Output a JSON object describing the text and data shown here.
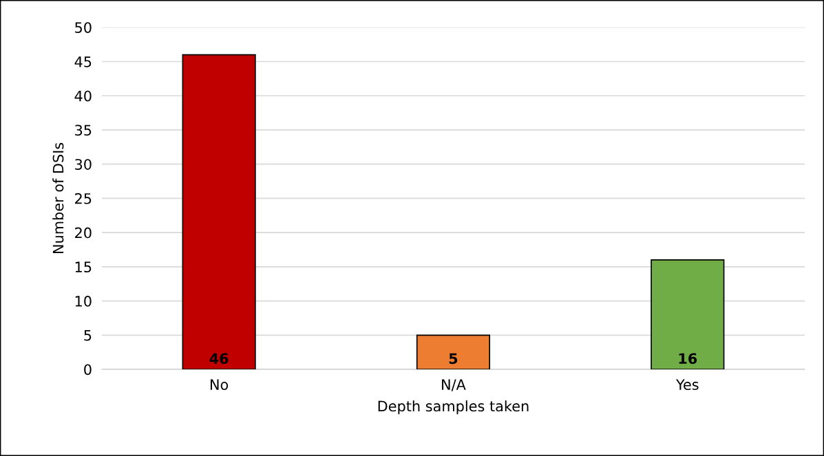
{
  "chart_data": {
    "type": "bar",
    "xlabel": "Depth samples taken",
    "ylabel": "Number of DSIs",
    "categories": [
      "No",
      "N/A",
      "Yes"
    ],
    "values": [
      46,
      5,
      16
    ],
    "colors": [
      "#c00000",
      "#ed7d31",
      "#70ad47"
    ],
    "ylim": [
      0,
      50
    ],
    "yticks": [
      0,
      5,
      10,
      15,
      20,
      25,
      30,
      35,
      40,
      45,
      50
    ],
    "grid": "y",
    "data_labels": true,
    "legend": false
  }
}
